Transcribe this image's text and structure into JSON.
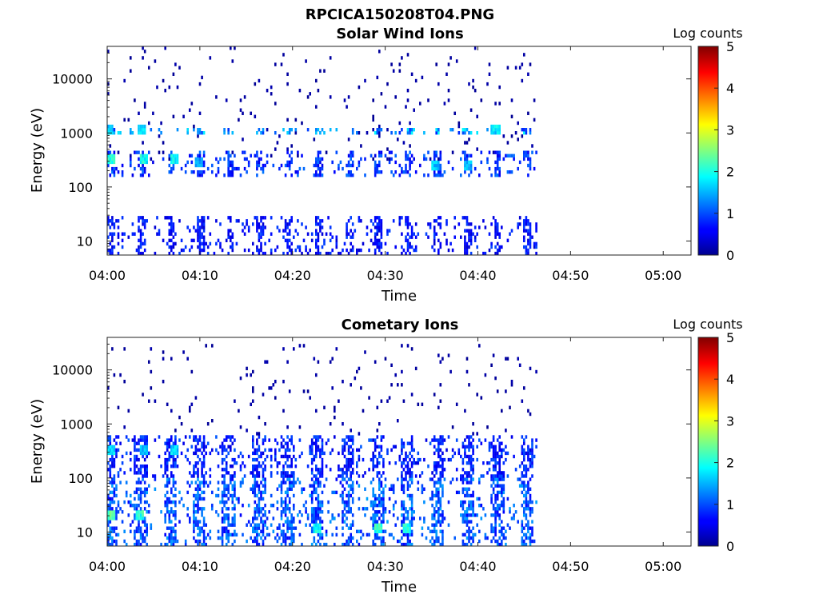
{
  "figure_title": "RPCICA150208T04.PNG",
  "chart_data": [
    {
      "type": "heatmap",
      "title": "Solar Wind Ions",
      "xlabel": "Time",
      "ylabel": "Energy (eV)",
      "x_ticks": [
        "04:00",
        "04:10",
        "04:20",
        "04:30",
        "04:40",
        "04:50",
        "05:00"
      ],
      "xlim_minutes": [
        0,
        63
      ],
      "y_ticks": [
        "10",
        "100",
        "1000",
        "10000"
      ],
      "y_scale": "log",
      "ylim": [
        5.5,
        40000
      ],
      "data_end_minutes": 46.5,
      "colorbar": {
        "label": "Log counts",
        "ticks": [
          "0",
          "1",
          "2",
          "3",
          "4",
          "5"
        ],
        "range": [
          0,
          5
        ],
        "colormap": "jet"
      },
      "bands": [
        {
          "energy_min": 5.5,
          "energy_max": 30,
          "level": 0.8,
          "description": "low-energy vertical streaks"
        },
        {
          "energy_min": 150,
          "energy_max": 450,
          "level": 1.0,
          "description": "main solar wind band"
        },
        {
          "energy_min": 900,
          "energy_max": 1300,
          "level": 1.6,
          "description": "alpha band at ~1000 eV"
        },
        {
          "energy_min": 300,
          "energy_max": 40000,
          "level": 0.2,
          "description": "sparse background counts"
        }
      ],
      "hotspots": [
        {
          "time_min": 0.4,
          "energy": 330,
          "level": 2.1
        },
        {
          "time_min": 3.9,
          "energy": 320,
          "level": 2.0
        },
        {
          "time_min": 7.1,
          "energy": 320,
          "level": 2.0
        },
        {
          "time_min": 9.8,
          "energy": 300,
          "level": 1.5
        },
        {
          "time_min": 0.2,
          "energy": 1100,
          "level": 1.7
        },
        {
          "time_min": 3.7,
          "energy": 1150,
          "level": 1.8
        },
        {
          "time_min": 35.3,
          "energy": 250,
          "level": 1.7
        },
        {
          "time_min": 38.8,
          "energy": 240,
          "level": 1.6
        },
        {
          "time_min": 41.8,
          "energy": 1100,
          "level": 1.8
        }
      ]
    },
    {
      "type": "heatmap",
      "title": "Cometary Ions",
      "xlabel": "Time",
      "ylabel": "Energy (eV)",
      "x_ticks": [
        "04:00",
        "04:10",
        "04:20",
        "04:30",
        "04:40",
        "04:50",
        "05:00"
      ],
      "xlim_minutes": [
        0,
        63
      ],
      "y_ticks": [
        "10",
        "100",
        "1000",
        "10000"
      ],
      "y_scale": "log",
      "ylim": [
        5.5,
        40000
      ],
      "data_end_minutes": 46.5,
      "colorbar": {
        "label": "Log counts",
        "ticks": [
          "0",
          "1",
          "2",
          "3",
          "4",
          "5"
        ],
        "range": [
          0,
          5
        ],
        "colormap": "jet"
      },
      "periodic_bursts_minutes": [
        0.2,
        3.5,
        6.7,
        9.8,
        13.0,
        16.3,
        19.4,
        22.6,
        25.8,
        29.1,
        32.3,
        35.5,
        38.8,
        42.0,
        45.2
      ],
      "bands": [
        {
          "energy_min": 5.5,
          "energy_max": 100,
          "level": 1.2,
          "description": "cometary ion streaks"
        },
        {
          "energy_min": 100,
          "energy_max": 600,
          "level": 0.9,
          "description": "upper cometary band"
        },
        {
          "energy_min": 600,
          "energy_max": 30000,
          "level": 0.2,
          "description": "sparse high-energy counts"
        }
      ],
      "hotspots": [
        {
          "time_min": 0.3,
          "energy": 330,
          "level": 1.8
        },
        {
          "time_min": 3.8,
          "energy": 330,
          "level": 1.6
        },
        {
          "time_min": 7.1,
          "energy": 330,
          "level": 1.8
        },
        {
          "time_min": 0.4,
          "energy": 20,
          "level": 2.3
        },
        {
          "time_min": 3.4,
          "energy": 20,
          "level": 2.2
        },
        {
          "time_min": 22.6,
          "energy": 12,
          "level": 2.0
        },
        {
          "time_min": 29.1,
          "energy": 12,
          "level": 2.2
        },
        {
          "time_min": 32.3,
          "energy": 12,
          "level": 2.1
        }
      ]
    }
  ]
}
